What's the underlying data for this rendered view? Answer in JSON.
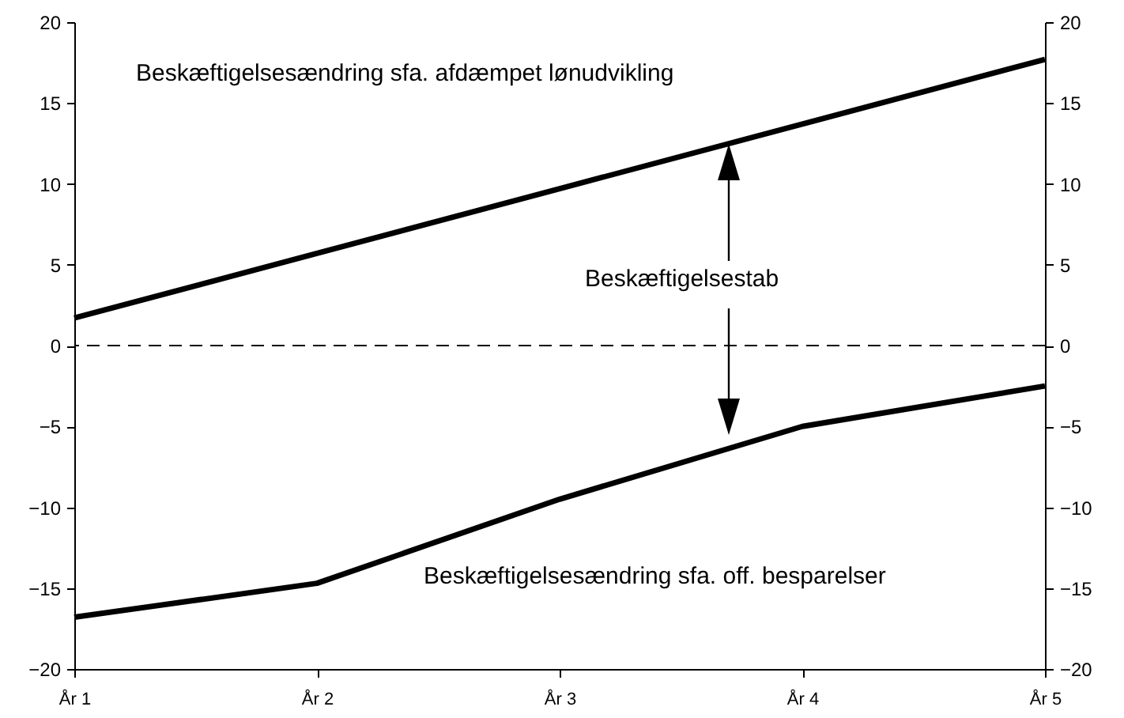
{
  "chart_data": {
    "type": "line",
    "categories": [
      "År 1",
      "År 2",
      "År 3",
      "År 4",
      "År 5"
    ],
    "series": [
      {
        "name": "Beskæftigelsesændring sfa. afdæmpet lønudvikling",
        "color": "#000000",
        "values": [
          1.7,
          5.7,
          9.7,
          13.7,
          17.7
        ]
      },
      {
        "name": "Beskæftigelsesændring sfa. off. besparelser",
        "color": "#000000",
        "values": [
          -16.8,
          -14.7,
          -9.5,
          -5.0,
          -2.5
        ]
      }
    ],
    "ylim": [
      -20,
      20
    ],
    "yticks": [
      -20,
      -15,
      -10,
      -5,
      0,
      5,
      10,
      15,
      20
    ],
    "y2lim": [
      -20,
      20
    ],
    "y2ticks": [
      -20,
      -15,
      -10,
      -5,
      0,
      5,
      10,
      15,
      20
    ],
    "ref_lines": [
      {
        "axis": "y",
        "value": 0,
        "line_style": "dashed",
        "color": "#000000"
      }
    ],
    "annotations": [
      "Beskæftigelsestab"
    ],
    "grid": false,
    "legend": false,
    "marker": "none",
    "line_style": "solid"
  }
}
